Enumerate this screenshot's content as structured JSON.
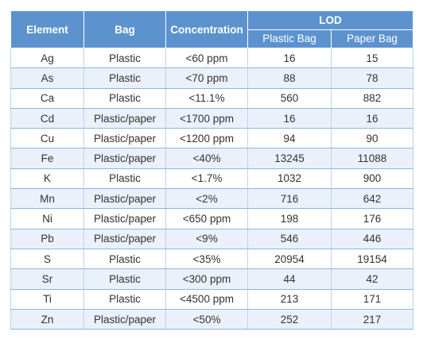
{
  "headers": {
    "element": "Element",
    "bag": "Bag",
    "concentration": "Concentration",
    "lod": "LOD",
    "plastic_bag": "Plastic Bag",
    "paper_bag": "Paper Bag"
  },
  "rows": [
    {
      "element": "Ag",
      "bag": "Plastic",
      "concentration": "<60 ppm",
      "plastic": "16",
      "paper": "15"
    },
    {
      "element": "As",
      "bag": "Plastic",
      "concentration": "<70 ppm",
      "plastic": "88",
      "paper": "78"
    },
    {
      "element": "Ca",
      "bag": "Plastic",
      "concentration": "<11.1%",
      "plastic": "560",
      "paper": "882"
    },
    {
      "element": "Cd",
      "bag": "Plastic/paper",
      "concentration": "<1700 ppm",
      "plastic": "16",
      "paper": "16"
    },
    {
      "element": "Cu",
      "bag": "Plastic/paper",
      "concentration": "<1200 ppm",
      "plastic": "94",
      "paper": "90"
    },
    {
      "element": "Fe",
      "bag": "Plastic/paper",
      "concentration": "<40%",
      "plastic": "13245",
      "paper": "11088"
    },
    {
      "element": "K",
      "bag": "Plastic",
      "concentration": "<1.7%",
      "plastic": "1032",
      "paper": "900"
    },
    {
      "element": "Mn",
      "bag": "Plastic/paper",
      "concentration": "<2%",
      "plastic": "716",
      "paper": "642"
    },
    {
      "element": "Ni",
      "bag": "Plastic/paper",
      "concentration": "<650 ppm",
      "plastic": "198",
      "paper": "176"
    },
    {
      "element": "Pb",
      "bag": "Plastic/paper",
      "concentration": "<9%",
      "plastic": "546",
      "paper": "446"
    },
    {
      "element": "S",
      "bag": "Plastic",
      "concentration": "<35%",
      "plastic": "20954",
      "paper": "19154"
    },
    {
      "element": "Sr",
      "bag": "Plastic",
      "concentration": "<300 ppm",
      "plastic": "44",
      "paper": "42"
    },
    {
      "element": "Ti",
      "bag": "Plastic",
      "concentration": "<4500 ppm",
      "plastic": "213",
      "paper": "171"
    },
    {
      "element": "Zn",
      "bag": "Plastic/paper",
      "concentration": "<50%",
      "plastic": "252",
      "paper": "217"
    }
  ],
  "colors": {
    "header_bg": "#5c93cf",
    "header_text": "#ffffff",
    "stripe": "#eaf1fa",
    "row_rule": "#8fb6df"
  }
}
